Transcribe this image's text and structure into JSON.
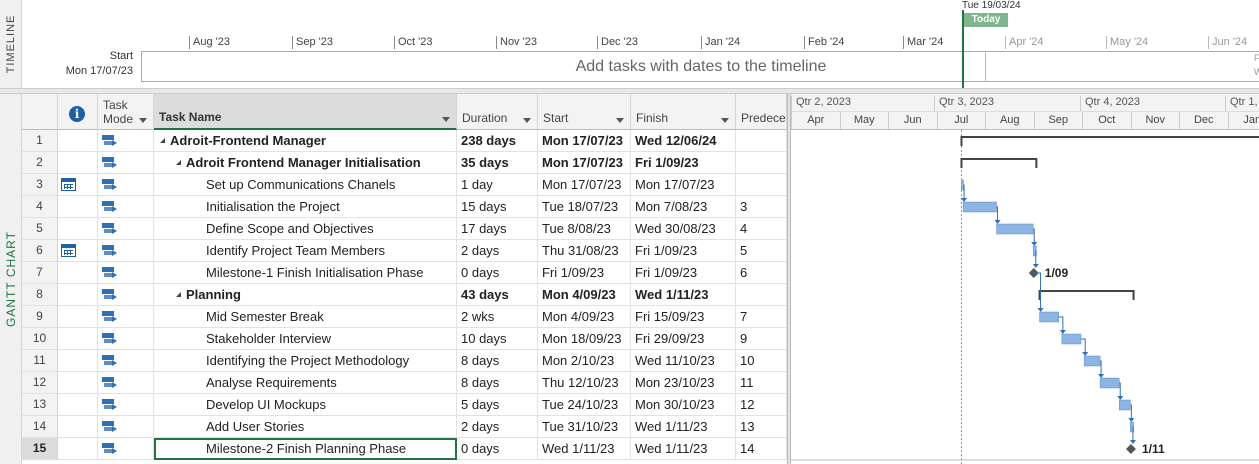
{
  "timeline": {
    "tab_label": "TIMELINE",
    "months": [
      "Aug '23",
      "Sep '23",
      "Oct '23",
      "Nov '23",
      "Dec '23",
      "Jan '24",
      "Feb '24",
      "Mar '24",
      "Apr '24",
      "May '24",
      "Jun '24"
    ],
    "start_label": "Start",
    "start_date": "Mon 17/07/23",
    "placeholder": "Add tasks with dates to the timeline",
    "today_date": "Tue 19/03/24",
    "today_label": "Today",
    "right_stub": "F\nW"
  },
  "gantt_tab_label": "GANTT CHART",
  "columns": {
    "info": "i",
    "mode": "Task\nMode",
    "name": "Task Name",
    "duration": "Duration",
    "start": "Start",
    "finish": "Finish",
    "predecessors": "Predecess"
  },
  "chart_header": {
    "quarters": [
      "Qtr 2, 2023",
      "Qtr 3, 2023",
      "Qtr 4, 2023",
      "Qtr 1,"
    ],
    "months": [
      "Apr",
      "May",
      "Jun",
      "Jul",
      "Aug",
      "Sep",
      "Oct",
      "Nov",
      "Dec",
      "Jan"
    ]
  },
  "tasks": [
    {
      "id": "1",
      "level": 0,
      "summary": true,
      "calendar": false,
      "name": "Adroit-Frontend Manager",
      "duration": "238 days",
      "start": "Mon 17/07/23",
      "finish": "Wed 12/06/24",
      "pred": ""
    },
    {
      "id": "2",
      "level": 1,
      "summary": true,
      "calendar": false,
      "name": "Adroit Frontend Manager Initialisation",
      "duration": "35 days",
      "start": "Mon 17/07/23",
      "finish": "Fri 1/09/23",
      "pred": ""
    },
    {
      "id": "3",
      "level": 2,
      "summary": false,
      "calendar": true,
      "name": "Set up Communications Chanels",
      "duration": "1 day",
      "start": "Mon 17/07/23",
      "finish": "Mon 17/07/23",
      "pred": ""
    },
    {
      "id": "4",
      "level": 2,
      "summary": false,
      "calendar": false,
      "name": "Initialisation the Project",
      "duration": "15 days",
      "start": "Tue 18/07/23",
      "finish": "Mon 7/08/23",
      "pred": "3"
    },
    {
      "id": "5",
      "level": 2,
      "summary": false,
      "calendar": false,
      "name": "Define Scope and Objectives",
      "duration": "17 days",
      "start": "Tue 8/08/23",
      "finish": "Wed 30/08/23",
      "pred": "4"
    },
    {
      "id": "6",
      "level": 2,
      "summary": false,
      "calendar": true,
      "name": "Identify Project Team Members",
      "duration": "2 days",
      "start": "Thu 31/08/23",
      "finish": "Fri 1/09/23",
      "pred": "5"
    },
    {
      "id": "7",
      "level": 2,
      "summary": false,
      "calendar": false,
      "name": "Milestone-1 Finish Initialisation Phase",
      "duration": "0 days",
      "start": "Fri 1/09/23",
      "finish": "Fri 1/09/23",
      "pred": "6"
    },
    {
      "id": "8",
      "level": 1,
      "summary": true,
      "calendar": false,
      "name": "Planning",
      "duration": "43 days",
      "start": "Mon 4/09/23",
      "finish": "Wed 1/11/23",
      "pred": ""
    },
    {
      "id": "9",
      "level": 2,
      "summary": false,
      "calendar": false,
      "name": "Mid Semester Break",
      "duration": "2 wks",
      "start": "Mon 4/09/23",
      "finish": "Fri 15/09/23",
      "pred": "7"
    },
    {
      "id": "10",
      "level": 2,
      "summary": false,
      "calendar": false,
      "name": "Stakeholder Interview",
      "duration": "10 days",
      "start": "Mon 18/09/23",
      "finish": "Fri 29/09/23",
      "pred": "9"
    },
    {
      "id": "11",
      "level": 2,
      "summary": false,
      "calendar": false,
      "name": "Identifying the Project Methodology",
      "duration": "8 days",
      "start": "Mon 2/10/23",
      "finish": "Wed 11/10/23",
      "pred": "10"
    },
    {
      "id": "12",
      "level": 2,
      "summary": false,
      "calendar": false,
      "name": "Analyse Requirements",
      "duration": "8 days",
      "start": "Thu 12/10/23",
      "finish": "Mon 23/10/23",
      "pred": "11"
    },
    {
      "id": "13",
      "level": 2,
      "summary": false,
      "calendar": false,
      "name": "Develop UI Mockups",
      "duration": "5 days",
      "start": "Tue 24/10/23",
      "finish": "Mon 30/10/23",
      "pred": "12"
    },
    {
      "id": "14",
      "level": 2,
      "summary": false,
      "calendar": false,
      "name": "Add User Stories",
      "duration": "2 days",
      "start": "Tue 31/10/23",
      "finish": "Wed 1/11/23",
      "pred": "13"
    },
    {
      "id": "15",
      "level": 2,
      "summary": false,
      "calendar": false,
      "name": "Milestone-2 Finish Planning Phase",
      "duration": "0 days",
      "start": "Wed 1/11/23",
      "finish": "Wed 1/11/23",
      "pred": "14",
      "selected": true
    }
  ],
  "milestone_labels": {
    "7": "1/09",
    "15": "1/11"
  },
  "colors": {
    "accent": "#217346",
    "task_bar": "#8db4e2",
    "task_bar_border": "#5b8fc8",
    "summary_bar": "#444444",
    "milestone": "#555555",
    "link": "#2f6fb3"
  }
}
